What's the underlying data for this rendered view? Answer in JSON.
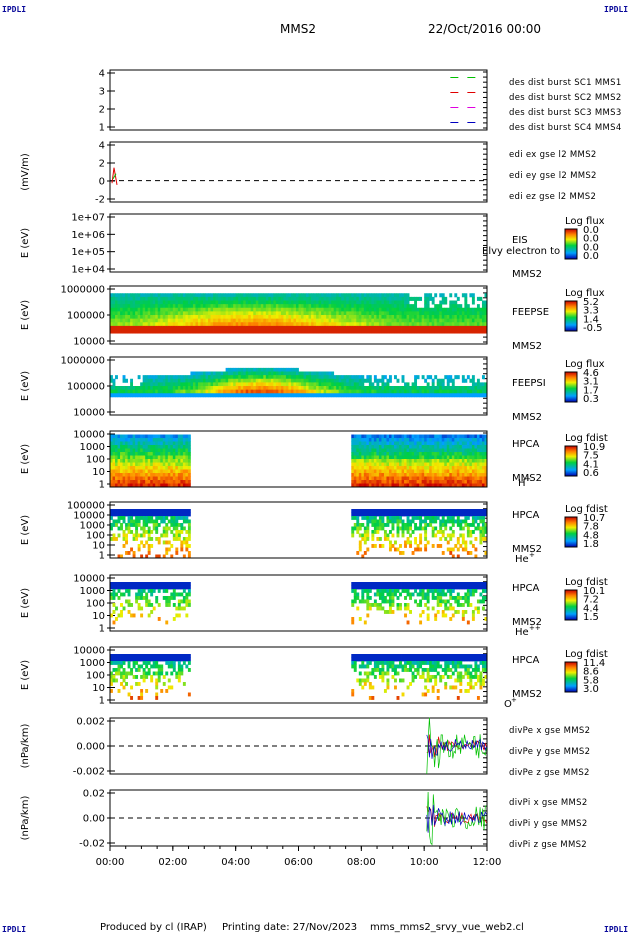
{
  "header": {
    "corner_left": "IPDLI",
    "corner_right": "IPDLI",
    "title": "MMS2",
    "date": "22/Oct/2016 00:00"
  },
  "footer": {
    "corner_left": "IPDLI",
    "corner_right": "IPDLI",
    "credit": "Produced by cl (IRAP)",
    "printing": "Printing date: 27/Nov/2023",
    "script": "mms_mms2_srvy_vue_web2.cl"
  },
  "colors": {
    "red": "#e00000",
    "green": "#00c000",
    "blue": "#0000c0",
    "magenta": "#e000e0"
  },
  "chart_data": [
    {
      "panel": 1,
      "type": "line",
      "y_ticks": [
        "4",
        "3",
        "2",
        "1"
      ],
      "ylim": [
        0.5,
        4.5
      ],
      "legend": [
        {
          "label": "des dist burst SC1 MMS1",
          "color": "#0000c0"
        },
        {
          "label": "des dist burst SC2 MMS2",
          "color": "#e000e0"
        },
        {
          "label": "des dist burst SC3 MMS3",
          "color": "#e00000"
        },
        {
          "label": "des dist burst SC4 MMS4",
          "color": "#00c000"
        }
      ],
      "series": [
        {
          "name": "des dist burst SC4 MMS4",
          "y": 4,
          "x_range": [
            "10:50",
            "11:40"
          ],
          "color": "#00c000"
        },
        {
          "name": "des dist burst SC3 MMS3",
          "y": 3,
          "x_range": [
            "10:50",
            "11:40"
          ],
          "color": "#e00000"
        },
        {
          "name": "des dist burst SC2 MMS2",
          "y": 2,
          "x_range": [
            "10:50",
            "11:40"
          ],
          "color": "#e000e0"
        },
        {
          "name": "des dist burst SC1 MMS1",
          "y": 1,
          "x_range": [
            "10:50",
            "11:40"
          ],
          "color": "#0000c0"
        }
      ]
    },
    {
      "panel": 2,
      "type": "line",
      "ylabel": "(mV/m)",
      "y_ticks": [
        "4",
        "2",
        "0",
        "-2"
      ],
      "ylim": [
        -2.5,
        4.5
      ],
      "legend": [
        {
          "label": "edi ex gse l2 MMS2",
          "color": "#e00000"
        },
        {
          "label": "edi ey gse l2 MMS2",
          "color": "#00c000"
        },
        {
          "label": "edi ez gse l2 MMS2",
          "color": "#0000c0"
        }
      ]
    },
    {
      "panel": 3,
      "type": "heatmap",
      "ylabel": "E (eV)",
      "y_ticks": [
        "1e+07",
        "1e+06",
        "1e+05",
        "1e+04"
      ],
      "right_labels": [
        "EIS",
        "MMS2"
      ],
      "overlay_text": "Elvy electron to",
      "colorbar": {
        "label": "Log flux",
        "ticks": [
          "0.0",
          "0.0",
          "0.0",
          "0.0"
        ]
      }
    },
    {
      "panel": 4,
      "type": "heatmap",
      "ylabel": "E (eV)",
      "y_ticks": [
        "1000000",
        "100000",
        "10000"
      ],
      "right_labels": [
        "FEEPSE",
        "MMS2"
      ],
      "colorbar": {
        "label": "Log flux",
        "ticks": [
          "5.2",
          "3.3",
          "1.4",
          "-0.5"
        ]
      }
    },
    {
      "panel": 5,
      "type": "heatmap",
      "ylabel": "E (eV)",
      "y_ticks": [
        "1000000",
        "100000",
        "10000"
      ],
      "right_labels": [
        "FEEPSI",
        "MMS2"
      ],
      "colorbar": {
        "label": "Log flux",
        "ticks": [
          "4.6",
          "3.1",
          "1.7",
          "0.3"
        ]
      }
    },
    {
      "panel": 6,
      "type": "heatmap",
      "ylabel": "E (eV)",
      "y_ticks": [
        "10000",
        "1000",
        "100",
        "10",
        "1"
      ],
      "right_labels": [
        "HPCA",
        "MMS2"
      ],
      "species": "H",
      "species_sup": "+",
      "data_gap": [
        "02:30",
        "07:40"
      ],
      "colorbar": {
        "label": "Log fdist",
        "ticks": [
          "10.9",
          "7.5",
          "4.1",
          "0.6"
        ]
      }
    },
    {
      "panel": 7,
      "type": "heatmap",
      "ylabel": "E (eV)",
      "y_ticks": [
        "100000",
        "10000",
        "1000",
        "100",
        "10",
        "1"
      ],
      "right_labels": [
        "HPCA",
        "MMS2"
      ],
      "species": "He",
      "species_sup": "+",
      "data_gap": [
        "02:30",
        "07:40"
      ],
      "colorbar": {
        "label": "Log fdist",
        "ticks": [
          "10.7",
          "7.8",
          "4.8",
          "1.8"
        ]
      }
    },
    {
      "panel": 8,
      "type": "heatmap",
      "ylabel": "E (eV)",
      "y_ticks": [
        "10000",
        "1000",
        "100",
        "10",
        "1"
      ],
      "right_labels": [
        "HPCA",
        "MMS2"
      ],
      "species": "He",
      "species_sup": "++",
      "data_gap": [
        "02:30",
        "07:40"
      ],
      "colorbar": {
        "label": "Log fdist",
        "ticks": [
          "10.1",
          "7.2",
          "4.4",
          "1.5"
        ]
      }
    },
    {
      "panel": 9,
      "type": "heatmap",
      "ylabel": "E (eV)",
      "y_ticks": [
        "10000",
        "1000",
        "100",
        "10",
        "1"
      ],
      "right_labels": [
        "HPCA",
        "MMS2"
      ],
      "species": "O",
      "species_sup": "+",
      "data_gap": [
        "02:30",
        "07:40"
      ],
      "colorbar": {
        "label": "Log fdist",
        "ticks": [
          "11.4",
          "8.6",
          "5.8",
          "3.0"
        ]
      }
    },
    {
      "panel": 10,
      "type": "line",
      "ylabel": "(nPa/km)",
      "y_ticks": [
        "0.002",
        "0.000",
        "-0.002"
      ],
      "ylim": [
        -0.0035,
        0.0035
      ],
      "data_start": "10:05",
      "legend": [
        {
          "label": "divPe x gse MMS2",
          "color": "#e00000"
        },
        {
          "label": "divPe y gse MMS2",
          "color": "#00c000"
        },
        {
          "label": "divPe z gse MMS2",
          "color": "#0000c0"
        }
      ]
    },
    {
      "panel": 11,
      "type": "line",
      "ylabel": "(nPa/km)",
      "y_ticks": [
        "0.02",
        "0.00",
        "-0.02"
      ],
      "ylim": [
        -0.028,
        0.028
      ],
      "data_start": "10:05",
      "legend": [
        {
          "label": "divPi x gse MMS2",
          "color": "#e00000"
        },
        {
          "label": "divPi y gse MMS2",
          "color": "#00c000"
        },
        {
          "label": "divPi z gse MMS2",
          "color": "#0000c0"
        }
      ]
    }
  ],
  "x_axis": {
    "ticks": [
      "00:00",
      "02:00",
      "04:00",
      "06:00",
      "08:00",
      "10:00",
      "12:00"
    ],
    "range_hours": [
      0,
      12
    ]
  }
}
